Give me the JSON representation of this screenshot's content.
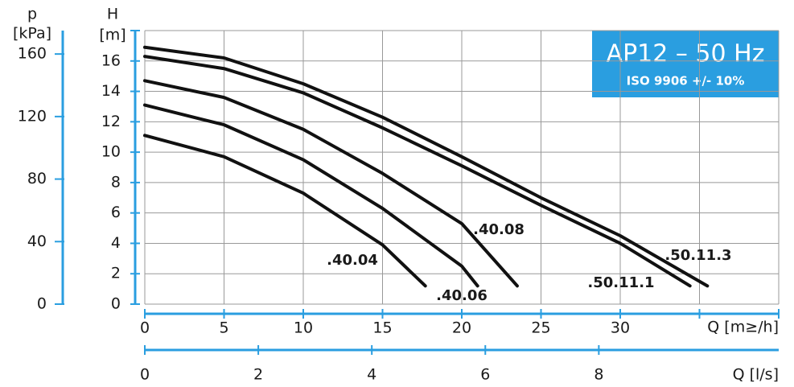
{
  "chart_data": {
    "type": "line",
    "title": "AP12 – 50 Hz",
    "subtitle": "ISO 9906 +/- 10%",
    "x_label": "Q [m≥/h]",
    "x2_label": "Q [l/s]",
    "y_label": [
      "H",
      "[m]"
    ],
    "y2_label": [
      "p",
      "[kPa]"
    ],
    "xlim": [
      0,
      40
    ],
    "xticks": [
      0,
      5,
      10,
      15,
      20,
      25,
      30,
      {
        "value": 35,
        "label": null
      },
      {
        "value": 40,
        "label": null
      }
    ],
    "x2lim": [
      0,
      11.17
    ],
    "x2ticks": [
      0,
      2,
      4,
      6,
      8
    ],
    "ylim": [
      0,
      18
    ],
    "yticks": [
      0,
      2,
      4,
      6,
      8,
      10,
      12,
      14,
      16,
      {
        "value": 18,
        "label": null
      }
    ],
    "y2lim": [
      0,
      175
    ],
    "y2ticks": [
      0,
      40,
      80,
      120,
      160
    ],
    "grid": true,
    "axis_color": "#2a9ee0",
    "series": [
      {
        "name": ".50.11.3",
        "color": "#111111",
        "x": [
          0,
          5,
          10,
          15,
          20,
          25,
          30,
          35.5
        ],
        "values": [
          16.9,
          16.2,
          14.5,
          12.3,
          9.7,
          7.0,
          4.5,
          1.2
        ]
      },
      {
        "name": ".50.11.1",
        "color": "#111111",
        "x": [
          0,
          5,
          10,
          15,
          20,
          25,
          30,
          34.4
        ],
        "values": [
          16.3,
          15.5,
          13.9,
          11.6,
          9.1,
          6.5,
          4.0,
          1.2
        ]
      },
      {
        "name": ".40.08",
        "color": "#111111",
        "x": [
          0,
          5,
          10,
          15,
          20,
          23.5
        ],
        "values": [
          14.7,
          13.6,
          11.5,
          8.6,
          5.3,
          1.2
        ]
      },
      {
        "name": ".40.06",
        "color": "#111111",
        "x": [
          0,
          5,
          10,
          15,
          20,
          21
        ],
        "values": [
          13.1,
          11.8,
          9.5,
          6.3,
          2.5,
          1.2
        ]
      },
      {
        "name": ".40.04",
        "color": "#111111",
        "x": [
          0,
          5,
          10,
          15,
          17.7
        ],
        "values": [
          11.1,
          9.7,
          7.3,
          3.9,
          1.2
        ]
      }
    ]
  }
}
